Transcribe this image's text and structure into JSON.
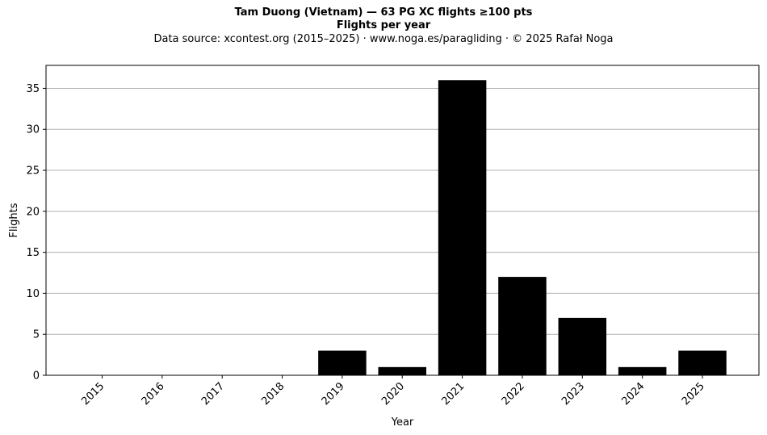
{
  "chart_data": {
    "type": "bar",
    "title": "Tam Duong (Vietnam)  —  63 PG XC flights ≥100 pts",
    "subtitle": "Flights per year",
    "source_line": "Data source: xcontest.org (2015–2025)  ·  www.noga.es/paragliding  ·  © 2025 Rafał Noga",
    "xlabel": "Year",
    "ylabel": "Flights",
    "categories": [
      "2015",
      "2016",
      "2017",
      "2018",
      "2019",
      "2020",
      "2021",
      "2022",
      "2023",
      "2024",
      "2025"
    ],
    "values": [
      0,
      0,
      0,
      0,
      3,
      1,
      36,
      12,
      7,
      1,
      3
    ],
    "ylim": [
      0,
      37.8
    ],
    "yticks": [
      0,
      5,
      10,
      15,
      20,
      25,
      30,
      35
    ],
    "grid": "y",
    "bar_color": "#000000",
    "grid_color": "#b0b0b0"
  }
}
